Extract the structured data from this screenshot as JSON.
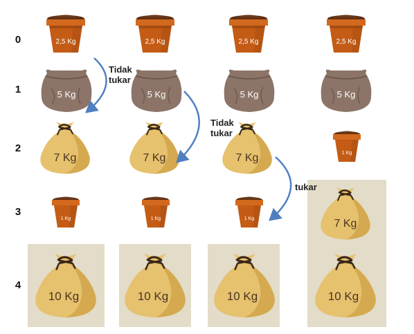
{
  "rows": [
    "0",
    "1",
    "2",
    "3",
    "4"
  ],
  "weights": {
    "pot_big": "2,5 Kg",
    "sack_grey": "5 Kg",
    "bag_7": "7 Kg",
    "pot_small": "1 Kg",
    "bag_10": "10 Kg"
  },
  "annotations": {
    "a1": "Tidak tukar",
    "a2": "Tidak tukar",
    "a3": "tukar"
  },
  "colors": {
    "pot": "#c45c15",
    "sack": "#8c7468",
    "bag": "#e6c16e",
    "highlight": "#e2dcc8",
    "arrow": "#4f7fbf"
  }
}
